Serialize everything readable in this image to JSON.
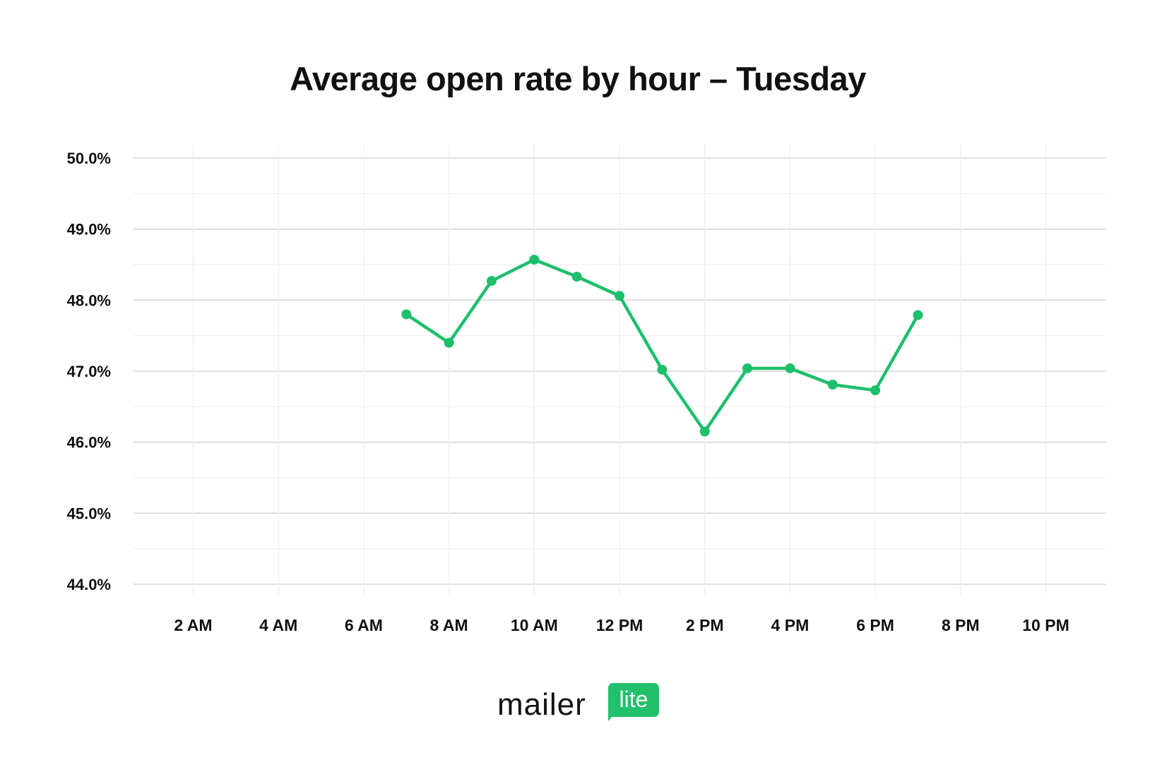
{
  "chart_data": {
    "type": "line",
    "title": "Average open rate by hour – Tuesday",
    "xlabel": "",
    "ylabel": "",
    "x": [
      7,
      8,
      9,
      10,
      11,
      12,
      13,
      14,
      15,
      16,
      17,
      18,
      19
    ],
    "series": [
      {
        "name": "Open rate",
        "color": "#1dbf6b",
        "values": [
          47.8,
          47.4,
          48.27,
          48.57,
          48.33,
          48.06,
          47.02,
          46.15,
          47.04,
          47.04,
          46.81,
          46.73,
          47.79
        ]
      }
    ],
    "ylim": [
      44.0,
      50.0
    ],
    "xlim": [
      0.6,
      23.4
    ],
    "yticks": [
      50.0,
      49.0,
      48.0,
      47.0,
      46.0,
      45.0,
      44.0
    ],
    "ytick_labels": [
      "50.0%",
      "49.0%",
      "48.0%",
      "47.0%",
      "46.0%",
      "45.0%",
      "44.0%"
    ],
    "xticks": [
      2,
      4,
      6,
      8,
      10,
      12,
      14,
      16,
      18,
      20,
      22
    ],
    "xtick_labels": [
      "2 AM",
      "4 AM",
      "6 AM",
      "8 AM",
      "10 AM",
      "12 PM",
      "2 PM",
      "4 PM",
      "6 PM",
      "8 PM",
      "10 PM"
    ],
    "grid": true,
    "legend": "none"
  },
  "branding": {
    "logo_word": "mailer",
    "logo_badge": "lite",
    "accent": "#21c16b"
  }
}
